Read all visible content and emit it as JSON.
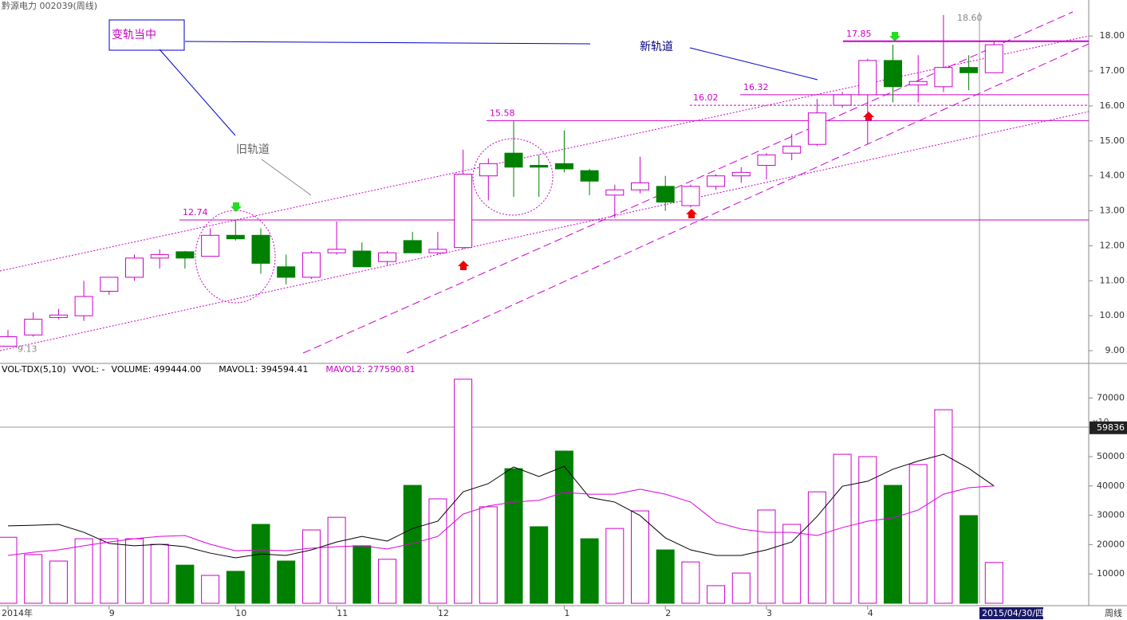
{
  "chart_data": [
    {
      "type": "candlestick",
      "title": "黔源电力 002039(周线)",
      "categories": [
        "2014年",
        null,
        null,
        null,
        "9",
        null,
        null,
        null,
        null,
        "10",
        null,
        null,
        null,
        "11",
        null,
        null,
        null,
        "12",
        null,
        null,
        null,
        null,
        "1",
        null,
        null,
        null,
        "2",
        null,
        null,
        null,
        "3",
        null,
        null,
        null,
        "4",
        null,
        null,
        null,
        null,
        null
      ],
      "open": [
        9.13,
        9.45,
        9.95,
        10.0,
        10.7,
        11.1,
        11.65,
        11.83,
        11.7,
        12.3,
        12.3,
        11.4,
        11.1,
        11.8,
        11.85,
        11.55,
        12.15,
        11.8,
        11.95,
        14.0,
        14.65,
        14.3,
        14.35,
        14.15,
        13.45,
        13.6,
        13.7,
        13.15,
        13.7,
        14.0,
        14.3,
        14.65,
        14.9,
        16.02,
        16.32,
        17.3,
        16.6,
        16.55,
        17.1,
        16.95
      ],
      "high": [
        9.6,
        10.1,
        10.2,
        11.0,
        11.1,
        11.75,
        11.9,
        11.85,
        12.5,
        12.74,
        12.5,
        11.75,
        11.85,
        12.7,
        12.1,
        11.85,
        12.4,
        12.4,
        14.75,
        14.5,
        15.58,
        14.6,
        15.3,
        14.2,
        13.75,
        14.55,
        14.0,
        13.75,
        14.05,
        14.25,
        14.65,
        15.2,
        16.2,
        16.4,
        17.35,
        17.75,
        17.45,
        18.6,
        17.45,
        17.85
      ],
      "low": [
        9.13,
        9.4,
        9.9,
        9.85,
        10.6,
        11.0,
        11.35,
        11.35,
        11.7,
        12.15,
        11.2,
        10.9,
        11.05,
        11.75,
        11.4,
        11.45,
        11.8,
        11.75,
        11.9,
        13.3,
        13.4,
        13.4,
        14.1,
        13.45,
        12.8,
        13.5,
        13.0,
        13.1,
        13.6,
        13.8,
        13.9,
        14.45,
        14.85,
        15.95,
        14.9,
        16.1,
        16.1,
        16.4,
        16.45,
        16.95
      ],
      "close": [
        9.4,
        9.9,
        10.02,
        10.55,
        11.1,
        11.65,
        11.75,
        11.65,
        12.3,
        12.2,
        11.5,
        11.1,
        11.8,
        11.9,
        11.4,
        11.8,
        11.8,
        11.9,
        14.05,
        14.35,
        14.25,
        14.25,
        14.2,
        13.85,
        13.6,
        13.8,
        13.25,
        13.7,
        14.0,
        14.1,
        14.6,
        14.85,
        15.8,
        16.32,
        17.3,
        16.55,
        16.7,
        17.1,
        16.95,
        17.75
      ],
      "up_color": "#cc00cc",
      "down_color": "#008000",
      "ylim": [
        8.66,
        19.03
      ],
      "yticks": [
        {
          "value": 9,
          "label": "9.00"
        },
        {
          "value": 10,
          "label": "10.00"
        },
        {
          "value": 11,
          "label": "11.00"
        },
        {
          "value": 12,
          "label": "12.00"
        },
        {
          "value": 13,
          "label": "13.00"
        },
        {
          "value": 14,
          "label": "14.00"
        },
        {
          "value": 15,
          "label": "15.00"
        },
        {
          "value": 16,
          "label": "16.00"
        },
        {
          "value": 17,
          "label": "17.00"
        },
        {
          "value": 18,
          "label": "18.00"
        }
      ],
      "levels": [
        12.74,
        15.58,
        16.02,
        16.32,
        17.85,
        {
          "value": 18.6,
          "label": "18.60"
        },
        9.13
      ],
      "annotations": [
        "变轨当中",
        "新轨道",
        "旧轨道"
      ],
      "date_label": "2015/04/30/四",
      "period_label": "周线"
    },
    {
      "type": "bar",
      "legend": [
        "VOL-TDX(5,10)",
        "VVOL: -",
        "VOLUME: 499444.00",
        "MAVOL1: 394594.41",
        "MAVOL2: 277590.81"
      ],
      "values": [
        22500,
        16600,
        14400,
        22000,
        22000,
        22000,
        20100,
        13000,
        9500,
        10900,
        26900,
        14400,
        25000,
        29300,
        19600,
        15000,
        40200,
        35600,
        76400,
        32900,
        45900,
        26100,
        51900,
        22000,
        25500,
        31500,
        18200,
        14100,
        6000,
        10300,
        31800,
        26900,
        38000,
        50800,
        50000,
        40200,
        47300,
        66000,
        29900,
        13900
      ],
      "series": [
        {
          "color": "#000000",
          "values": [
            26400,
            26600,
            26900,
            24200,
            20400,
            19600,
            20100,
            19300,
            17100,
            15500,
            16800,
            16300,
            18200,
            20900,
            22800,
            21200,
            25500,
            28000,
            38000,
            40800,
            46500,
            43200,
            46700,
            36100,
            34500,
            29900,
            22300,
            18200,
            16300,
            16300,
            18200,
            20900,
            29600,
            39900,
            41600,
            45700,
            48500,
            50800,
            46000,
            40000
          ]
        },
        {
          "color": "#dd00dd",
          "values": [
            16300,
            17400,
            18200,
            19600,
            20900,
            22000,
            22800,
            23100,
            20100,
            17900,
            18200,
            17900,
            18800,
            19300,
            19600,
            18500,
            20400,
            22800,
            30400,
            33200,
            34500,
            35100,
            37800,
            37200,
            37200,
            38900,
            37200,
            34500,
            27700,
            25300,
            24200,
            24200,
            23100,
            25800,
            28000,
            29100,
            31800,
            37200,
            39400,
            40000
          ]
        }
      ],
      "ylim": [
        0,
        81250
      ],
      "yticks": [
        10000,
        20000,
        30000,
        40000,
        50000,
        60000,
        70000
      ],
      "cursor_value": 59836,
      "unit_label": "x10"
    }
  ]
}
